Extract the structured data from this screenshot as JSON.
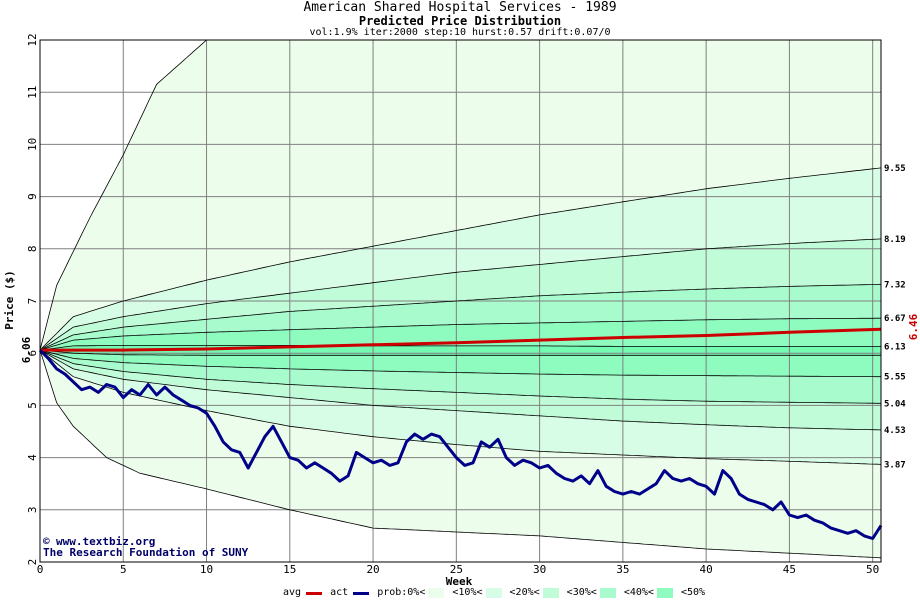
{
  "header": {
    "title": "American Shared Hospital Services - 1989",
    "subtitle": "Predicted Price Distribution",
    "params": "vol:1.9% iter:2000 step:10 hurst:0.57 drift:0.07/0"
  },
  "colors": {
    "avg": "#cc0000",
    "act": "#000088",
    "band_outer": "#ecfdec",
    "band_10": "#d8fde6",
    "band_20": "#c0fcd8",
    "band_30": "#a7fbcc",
    "band_40": "#8efbbf",
    "band_50": "#75fab2"
  },
  "watermark": {
    "site": "www.textbiz.org",
    "org": "The Research Foundation of SUNY"
  },
  "legend": {
    "avg": "avg",
    "act": "act",
    "prob": "prob:0%<",
    "p10": "<10%<",
    "p20": "<20%<",
    "p30": "<30%<",
    "p40": "<40%<",
    "p50": "<50%"
  },
  "chart_data": {
    "type": "line",
    "title": "American Shared Hospital Services - 1989",
    "subtitle": "Predicted Price Distribution",
    "xlabel": "Week",
    "ylabel": "Price ($)",
    "xlim": [
      0,
      50.5
    ],
    "ylim": [
      2,
      12
    ],
    "xticks": [
      0,
      5,
      10,
      15,
      20,
      25,
      30,
      35,
      40,
      45,
      50
    ],
    "yticks": [
      2,
      3,
      4,
      5,
      6,
      7,
      8,
      9,
      10,
      11,
      12
    ],
    "grid": true,
    "start_value": "6.06",
    "end_value": "6.46",
    "band_end_labels": [
      "9.55",
      "8.19",
      "7.32",
      "6.67",
      "6.13",
      "5.55",
      "5.04",
      "4.53",
      "3.87"
    ],
    "probability_bands": [
      {
        "name": "0%",
        "upper": [
          [
            0,
            6.06
          ],
          [
            1,
            7.3
          ],
          [
            3,
            8.6
          ],
          [
            5,
            9.8
          ],
          [
            7,
            11.15
          ],
          [
            10,
            12.0
          ]
        ],
        "lower": [
          [
            0,
            6.06
          ],
          [
            1,
            5.05
          ],
          [
            2,
            4.6
          ],
          [
            4,
            4.0
          ],
          [
            6,
            3.7
          ],
          [
            10,
            3.4
          ],
          [
            15,
            3.0
          ],
          [
            20,
            2.65
          ],
          [
            30,
            2.5
          ],
          [
            40,
            2.25
          ],
          [
            50.5,
            2.08
          ]
        ]
      },
      {
        "name": "10%",
        "upper": [
          [
            0,
            6.06
          ],
          [
            2,
            6.7
          ],
          [
            5,
            7.0
          ],
          [
            10,
            7.4
          ],
          [
            15,
            7.75
          ],
          [
            20,
            8.05
          ],
          [
            25,
            8.35
          ],
          [
            30,
            8.65
          ],
          [
            35,
            8.9
          ],
          [
            40,
            9.15
          ],
          [
            45,
            9.35
          ],
          [
            50.5,
            9.55
          ]
        ],
        "lower": [
          [
            0,
            6.06
          ],
          [
            2,
            5.55
          ],
          [
            5,
            5.25
          ],
          [
            10,
            4.9
          ],
          [
            15,
            4.6
          ],
          [
            20,
            4.4
          ],
          [
            25,
            4.25
          ],
          [
            30,
            4.12
          ],
          [
            35,
            4.05
          ],
          [
            40,
            3.98
          ],
          [
            45,
            3.93
          ],
          [
            50.5,
            3.87
          ]
        ]
      },
      {
        "name": "20%",
        "upper": [
          [
            0,
            6.06
          ],
          [
            2,
            6.5
          ],
          [
            5,
            6.7
          ],
          [
            10,
            6.95
          ],
          [
            15,
            7.15
          ],
          [
            20,
            7.35
          ],
          [
            25,
            7.55
          ],
          [
            30,
            7.7
          ],
          [
            35,
            7.85
          ],
          [
            40,
            8.0
          ],
          [
            45,
            8.1
          ],
          [
            50.5,
            8.19
          ]
        ],
        "lower": [
          [
            0,
            6.06
          ],
          [
            2,
            5.7
          ],
          [
            5,
            5.5
          ],
          [
            10,
            5.3
          ],
          [
            15,
            5.15
          ],
          [
            20,
            5.0
          ],
          [
            25,
            4.9
          ],
          [
            30,
            4.8
          ],
          [
            35,
            4.7
          ],
          [
            40,
            4.63
          ],
          [
            45,
            4.57
          ],
          [
            50.5,
            4.53
          ]
        ]
      },
      {
        "name": "30%",
        "upper": [
          [
            0,
            6.06
          ],
          [
            2,
            6.35
          ],
          [
            5,
            6.5
          ],
          [
            10,
            6.65
          ],
          [
            15,
            6.8
          ],
          [
            20,
            6.9
          ],
          [
            25,
            7.0
          ],
          [
            30,
            7.1
          ],
          [
            35,
            7.17
          ],
          [
            40,
            7.23
          ],
          [
            45,
            7.28
          ],
          [
            50.5,
            7.32
          ]
        ],
        "lower": [
          [
            0,
            6.06
          ],
          [
            2,
            5.8
          ],
          [
            5,
            5.65
          ],
          [
            10,
            5.5
          ],
          [
            15,
            5.4
          ],
          [
            20,
            5.32
          ],
          [
            25,
            5.25
          ],
          [
            30,
            5.18
          ],
          [
            35,
            5.12
          ],
          [
            40,
            5.08
          ],
          [
            45,
            5.06
          ],
          [
            50.5,
            5.04
          ]
        ]
      },
      {
        "name": "40%",
        "upper": [
          [
            0,
            6.06
          ],
          [
            2,
            6.25
          ],
          [
            5,
            6.33
          ],
          [
            10,
            6.4
          ],
          [
            15,
            6.45
          ],
          [
            20,
            6.5
          ],
          [
            25,
            6.55
          ],
          [
            30,
            6.58
          ],
          [
            35,
            6.61
          ],
          [
            40,
            6.64
          ],
          [
            45,
            6.66
          ],
          [
            50.5,
            6.67
          ]
        ],
        "lower": [
          [
            0,
            6.06
          ],
          [
            2,
            5.9
          ],
          [
            5,
            5.82
          ],
          [
            10,
            5.75
          ],
          [
            15,
            5.7
          ],
          [
            20,
            5.66
          ],
          [
            25,
            5.63
          ],
          [
            30,
            5.6
          ],
          [
            35,
            5.58
          ],
          [
            40,
            5.57
          ],
          [
            45,
            5.56
          ],
          [
            50.5,
            5.55
          ]
        ]
      },
      {
        "name": "50%",
        "upper": [
          [
            0,
            6.06
          ],
          [
            2,
            6.14
          ],
          [
            5,
            6.15
          ],
          [
            10,
            6.15
          ],
          [
            15,
            6.15
          ],
          [
            20,
            6.14
          ],
          [
            25,
            6.14
          ],
          [
            30,
            6.14
          ],
          [
            35,
            6.13
          ],
          [
            40,
            6.13
          ],
          [
            45,
            6.13
          ],
          [
            50.5,
            6.13
          ]
        ],
        "lower": [
          [
            0,
            6.06
          ],
          [
            2,
            6.0
          ],
          [
            5,
            5.97
          ],
          [
            10,
            5.96
          ],
          [
            15,
            5.96
          ],
          [
            20,
            5.96
          ],
          [
            25,
            5.96
          ],
          [
            30,
            5.96
          ],
          [
            35,
            5.96
          ],
          [
            40,
            5.96
          ],
          [
            45,
            5.96
          ],
          [
            50.5,
            5.96
          ]
        ]
      }
    ],
    "series": [
      {
        "name": "avg",
        "points": [
          [
            0,
            6.06
          ],
          [
            5,
            6.06
          ],
          [
            10,
            6.08
          ],
          [
            15,
            6.12
          ],
          [
            20,
            6.16
          ],
          [
            25,
            6.2
          ],
          [
            30,
            6.25
          ],
          [
            35,
            6.3
          ],
          [
            40,
            6.34
          ],
          [
            45,
            6.4
          ],
          [
            50.5,
            6.46
          ]
        ]
      },
      {
        "name": "act",
        "points": [
          [
            0,
            6.06
          ],
          [
            0.5,
            5.9
          ],
          [
            1,
            5.7
          ],
          [
            1.5,
            5.6
          ],
          [
            2,
            5.45
          ],
          [
            2.5,
            5.3
          ],
          [
            3,
            5.35
          ],
          [
            3.5,
            5.25
          ],
          [
            4,
            5.4
          ],
          [
            4.5,
            5.35
          ],
          [
            5,
            5.15
          ],
          [
            5.5,
            5.3
          ],
          [
            6,
            5.2
          ],
          [
            6.5,
            5.4
          ],
          [
            7,
            5.2
          ],
          [
            7.5,
            5.35
          ],
          [
            8,
            5.2
          ],
          [
            8.5,
            5.1
          ],
          [
            9,
            5.0
          ],
          [
            9.5,
            4.95
          ],
          [
            10,
            4.85
          ],
          [
            10.5,
            4.6
          ],
          [
            11,
            4.3
          ],
          [
            11.5,
            4.15
          ],
          [
            12,
            4.1
          ],
          [
            12.5,
            3.8
          ],
          [
            13,
            4.1
          ],
          [
            13.5,
            4.4
          ],
          [
            14,
            4.6
          ],
          [
            14.5,
            4.3
          ],
          [
            15,
            4.0
          ],
          [
            15.5,
            3.95
          ],
          [
            16,
            3.8
          ],
          [
            16.5,
            3.9
          ],
          [
            17,
            3.8
          ],
          [
            17.5,
            3.7
          ],
          [
            18,
            3.55
          ],
          [
            18.5,
            3.65
          ],
          [
            19,
            4.1
          ],
          [
            19.5,
            4.0
          ],
          [
            20,
            3.9
          ],
          [
            20.5,
            3.95
          ],
          [
            21,
            3.85
          ],
          [
            21.5,
            3.9
          ],
          [
            22,
            4.3
          ],
          [
            22.5,
            4.45
          ],
          [
            23,
            4.35
          ],
          [
            23.5,
            4.45
          ],
          [
            24,
            4.4
          ],
          [
            24.5,
            4.2
          ],
          [
            25,
            4.0
          ],
          [
            25.5,
            3.85
          ],
          [
            26,
            3.9
          ],
          [
            26.5,
            4.3
          ],
          [
            27,
            4.2
          ],
          [
            27.5,
            4.35
          ],
          [
            28,
            4.0
          ],
          [
            28.5,
            3.85
          ],
          [
            29,
            3.95
          ],
          [
            29.5,
            3.9
          ],
          [
            30,
            3.8
          ],
          [
            30.5,
            3.85
          ],
          [
            31,
            3.7
          ],
          [
            31.5,
            3.6
          ],
          [
            32,
            3.55
          ],
          [
            32.5,
            3.65
          ],
          [
            33,
            3.5
          ],
          [
            33.5,
            3.75
          ],
          [
            34,
            3.45
          ],
          [
            34.5,
            3.35
          ],
          [
            35,
            3.3
          ],
          [
            35.5,
            3.35
          ],
          [
            36,
            3.3
          ],
          [
            36.5,
            3.4
          ],
          [
            37,
            3.5
          ],
          [
            37.5,
            3.75
          ],
          [
            38,
            3.6
          ],
          [
            38.5,
            3.55
          ],
          [
            39,
            3.6
          ],
          [
            39.5,
            3.5
          ],
          [
            40,
            3.45
          ],
          [
            40.5,
            3.3
          ],
          [
            41,
            3.75
          ],
          [
            41.5,
            3.6
          ],
          [
            42,
            3.3
          ],
          [
            42.5,
            3.2
          ],
          [
            43,
            3.15
          ],
          [
            43.5,
            3.1
          ],
          [
            44,
            3.0
          ],
          [
            44.5,
            3.15
          ],
          [
            45,
            2.9
          ],
          [
            45.5,
            2.85
          ],
          [
            46,
            2.9
          ],
          [
            46.5,
            2.8
          ],
          [
            47,
            2.75
          ],
          [
            47.5,
            2.65
          ],
          [
            48,
            2.6
          ],
          [
            48.5,
            2.55
          ],
          [
            49,
            2.6
          ],
          [
            49.5,
            2.5
          ],
          [
            50,
            2.45
          ],
          [
            50.5,
            2.7
          ]
        ]
      }
    ]
  }
}
